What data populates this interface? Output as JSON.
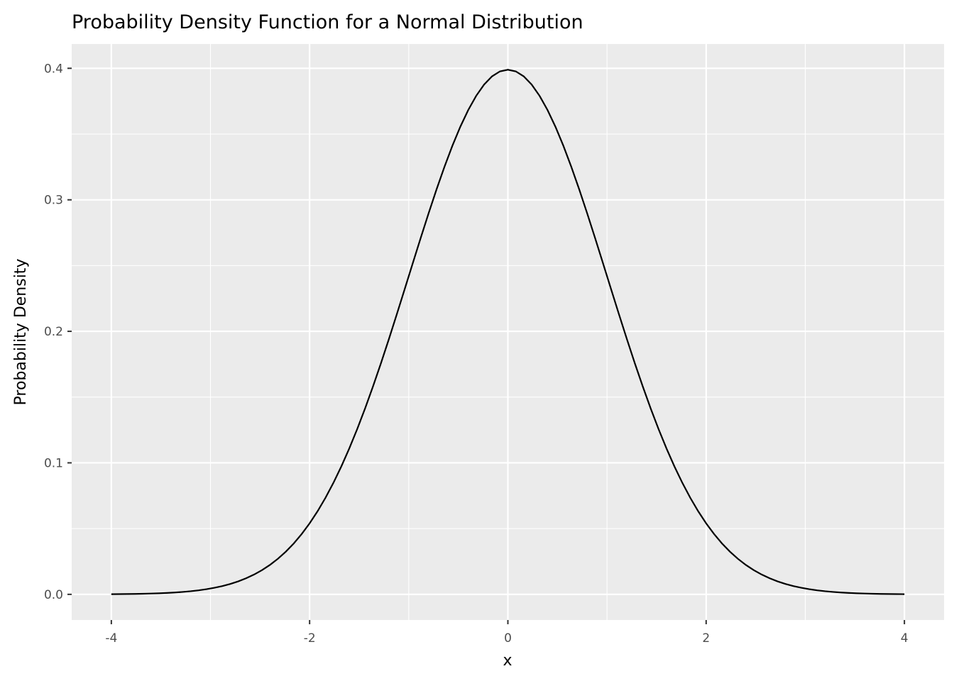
{
  "chart_data": {
    "type": "line",
    "title": "Probability Density Function for a Normal Distribution",
    "xlabel": "x",
    "ylabel": "Probability Density",
    "function": "normal pdf",
    "mean": 0,
    "sd": 1,
    "x_range": [
      -4,
      4
    ],
    "n_points": 101,
    "xlim": [
      -4.4,
      4.4
    ],
    "ylim": [
      -0.0195,
      0.4185
    ],
    "x_ticks": [
      -4,
      -2,
      0,
      2,
      4
    ],
    "x_tick_labels": [
      "-4",
      "-2",
      "0",
      "2",
      "4"
    ],
    "y_ticks": [
      0.0,
      0.1,
      0.2,
      0.3,
      0.4
    ],
    "y_tick_labels": [
      "0.0",
      "0.1",
      "0.2",
      "0.3",
      "0.4"
    ],
    "grid": true,
    "colors": {
      "panel": "#ebebeb",
      "grid": "#ffffff",
      "line": "#000000"
    }
  }
}
